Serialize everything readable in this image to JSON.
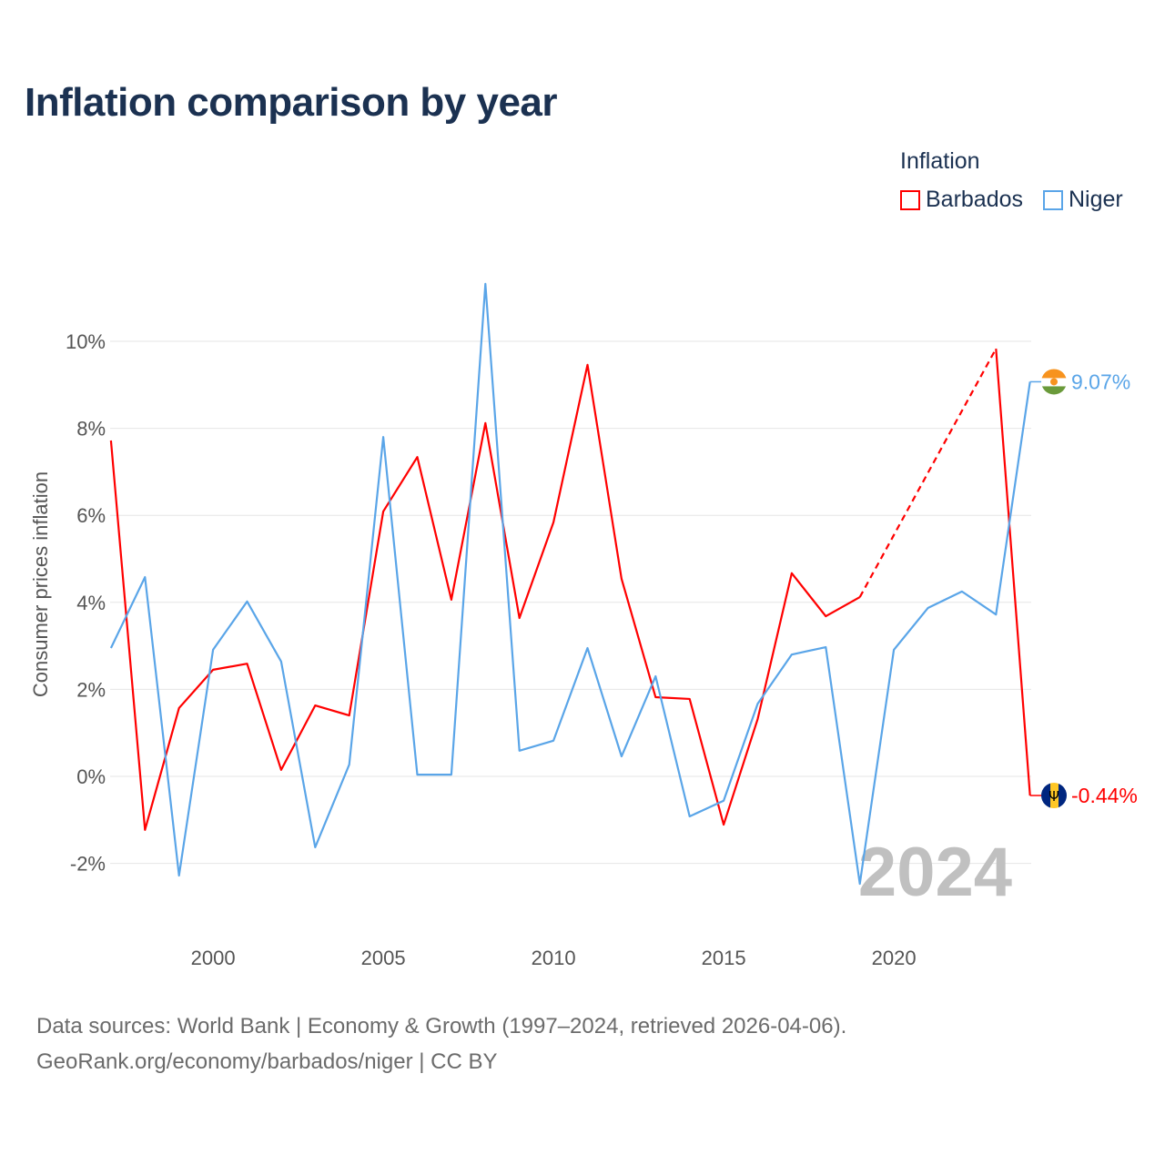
{
  "chart_data": {
    "type": "line",
    "title": "Inflation comparison by year",
    "ylabel": "Consumer prices inflation",
    "xlabel": "",
    "legend_title": "Inflation",
    "legend_position": "top-right",
    "ylim": [
      -3,
      12
    ],
    "xlim": [
      1997,
      2024
    ],
    "yticks": [
      -2,
      0,
      2,
      4,
      6,
      8,
      10
    ],
    "ytick_labels": [
      "-2%",
      "0%",
      "2%",
      "4%",
      "6%",
      "8%",
      "10%"
    ],
    "xticks": [
      2000,
      2005,
      2010,
      2015,
      2020
    ],
    "xtick_labels": [
      "2000",
      "2005",
      "2010",
      "2015",
      "2020"
    ],
    "grid": true,
    "year_watermark": "2024",
    "x": [
      1997,
      1998,
      1999,
      2000,
      2001,
      2002,
      2003,
      2004,
      2005,
      2006,
      2007,
      2008,
      2009,
      2010,
      2011,
      2012,
      2013,
      2014,
      2015,
      2016,
      2017,
      2018,
      2019,
      2020,
      2021,
      2022,
      2023,
      2024
    ],
    "series": [
      {
        "name": "Barbados",
        "color": "#ff0000",
        "end_label": "-0.44%",
        "flag": "barbados-flag",
        "values": [
          7.72,
          -1.23,
          1.57,
          2.45,
          2.59,
          0.15,
          1.63,
          1.4,
          6.09,
          7.34,
          4.06,
          8.12,
          3.64,
          5.84,
          9.46,
          4.54,
          1.82,
          1.78,
          -1.11,
          1.32,
          4.67,
          3.68,
          4.12,
          null,
          null,
          null,
          9.83,
          -0.44
        ]
      },
      {
        "name": "Niger",
        "color": "#5aa5e8",
        "end_label": "9.07%",
        "flag": "niger-flag",
        "values": [
          2.95,
          4.58,
          -2.28,
          2.91,
          4.02,
          2.64,
          -1.63,
          0.27,
          7.8,
          0.04,
          0.04,
          11.32,
          0.59,
          0.82,
          2.95,
          0.46,
          2.3,
          -0.92,
          -0.56,
          1.67,
          2.8,
          2.97,
          -2.47,
          2.91,
          3.87,
          4.25,
          3.72,
          9.07
        ]
      }
    ]
  },
  "footer": {
    "line1": "Data sources: World Bank | Economy & Growth (1997–2024, retrieved 2026-04-06).",
    "line2": "GeoRank.org/economy/barbados/niger | CC BY"
  }
}
